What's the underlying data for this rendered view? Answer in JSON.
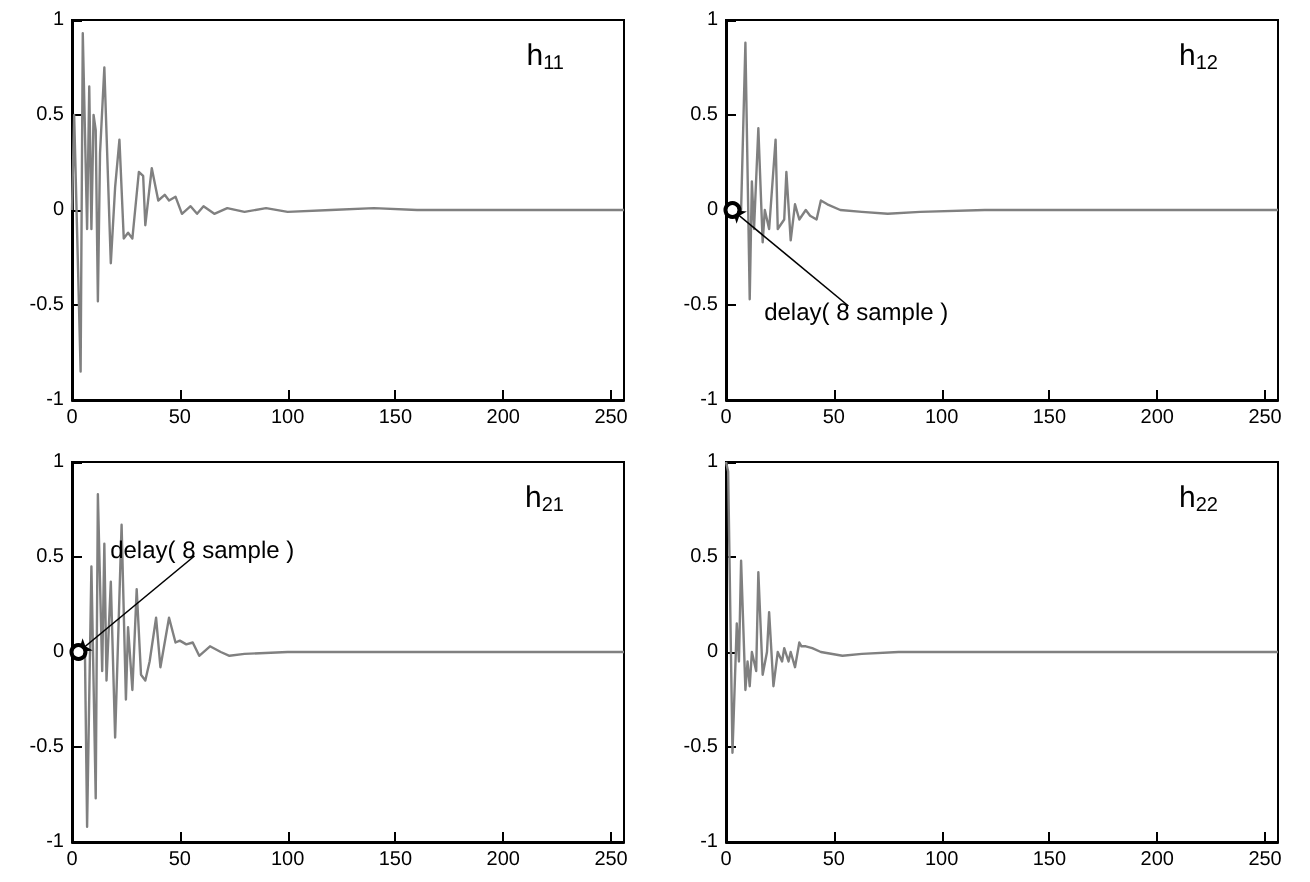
{
  "chart_data": [
    {
      "type": "line",
      "title": "h$_{11}$",
      "xlim": [
        0,
        256
      ],
      "ylim": [
        -1,
        1
      ],
      "xticks": [
        0,
        50,
        100,
        150,
        200,
        250
      ],
      "yticks": [
        -1,
        -0.5,
        0,
        0.5,
        1
      ],
      "grid": false,
      "series": [
        {
          "color": "#808080",
          "x": [
            0,
            1,
            4,
            5,
            7,
            8,
            9,
            10,
            11,
            12,
            13,
            15,
            18,
            20,
            22,
            24,
            26,
            28,
            31,
            33,
            34,
            37,
            40,
            43,
            45,
            48,
            51,
            55,
            58,
            61,
            66,
            72,
            80,
            90,
            100,
            120,
            140,
            160,
            200,
            256
          ],
          "values": [
            0,
            0.5,
            -0.85,
            0.93,
            -0.1,
            0.65,
            -0.1,
            0.5,
            0.42,
            -0.48,
            0.3,
            0.75,
            -0.28,
            0.12,
            0.37,
            -0.15,
            -0.12,
            -0.15,
            0.2,
            0.18,
            -0.08,
            0.22,
            0.05,
            0.08,
            0.05,
            0.07,
            -0.02,
            0.02,
            -0.02,
            0.02,
            -0.02,
            0.01,
            -0.01,
            0.01,
            -0.01,
            0,
            0.01,
            0,
            0,
            0
          ]
        }
      ]
    },
    {
      "type": "line",
      "title": "h$_{12}$",
      "xlim": [
        0,
        256
      ],
      "ylim": [
        -1,
        1
      ],
      "xticks": [
        0,
        50,
        100,
        150,
        200,
        250
      ],
      "yticks": [
        -1,
        -0.5,
        0,
        0.5,
        1
      ],
      "grid": false,
      "annotations": [
        {
          "text": "delay( 8 sample )",
          "x": 3,
          "y": 0
        }
      ],
      "series": [
        {
          "color": "#808080",
          "x": [
            0,
            7,
            9,
            11,
            12,
            13,
            15,
            17,
            18,
            20,
            23,
            24,
            27,
            28,
            30,
            32,
            34,
            37,
            39,
            42,
            44,
            47,
            53,
            63,
            75,
            90,
            120,
            160,
            200,
            256
          ],
          "values": [
            0,
            0,
            0.88,
            -0.47,
            0.15,
            -0.1,
            0.43,
            -0.17,
            0,
            -0.1,
            0.37,
            -0.1,
            -0.05,
            0.2,
            -0.16,
            0.03,
            -0.05,
            0,
            -0.03,
            -0.05,
            0.05,
            0.03,
            0,
            -0.01,
            -0.02,
            -0.01,
            0,
            0,
            0,
            0
          ]
        }
      ]
    },
    {
      "type": "line",
      "title": "h$_{21}$",
      "xlim": [
        0,
        256
      ],
      "ylim": [
        -1,
        1
      ],
      "xticks": [
        0,
        50,
        100,
        150,
        200,
        250
      ],
      "yticks": [
        -1,
        -0.5,
        0,
        0.5,
        1
      ],
      "grid": false,
      "annotations": [
        {
          "text": "delay( 8 sample )",
          "x": 3,
          "y": 0
        }
      ],
      "series": [
        {
          "color": "#808080",
          "x": [
            0,
            6,
            7,
            9,
            11,
            12,
            14,
            15,
            16,
            18,
            20,
            23,
            25,
            26,
            28,
            30,
            32,
            34,
            36,
            39,
            41,
            45,
            48,
            50,
            53,
            56,
            59,
            64,
            69,
            73,
            80,
            100,
            130,
            160,
            200,
            256
          ],
          "values": [
            0,
            0,
            -0.92,
            0.45,
            -0.77,
            0.83,
            -0.1,
            0.57,
            -0.15,
            0.37,
            -0.45,
            0.67,
            -0.25,
            0.13,
            -0.2,
            0.33,
            -0.12,
            -0.15,
            -0.05,
            0.18,
            -0.08,
            0.18,
            0.05,
            0.06,
            0.04,
            0.05,
            -0.02,
            0.03,
            0,
            -0.02,
            -0.01,
            0,
            0,
            0,
            0,
            0
          ]
        }
      ]
    },
    {
      "type": "line",
      "title": "h$_{22}$",
      "xlim": [
        0,
        256
      ],
      "ylim": [
        -1,
        1
      ],
      "xticks": [
        0,
        50,
        100,
        150,
        200,
        250
      ],
      "yticks": [
        -1,
        -0.5,
        0,
        0.5,
        1
      ],
      "grid": false,
      "series": [
        {
          "color": "#808080",
          "x": [
            0,
            1,
            3,
            5,
            6,
            7,
            9,
            10,
            11,
            12,
            14,
            15,
            17,
            19,
            20,
            22,
            24,
            26,
            27,
            29,
            30,
            32,
            34,
            35,
            37,
            40,
            44,
            54,
            63,
            80,
            120,
            160,
            200,
            256
          ],
          "values": [
            1,
            0.95,
            -0.53,
            0.15,
            -0.05,
            0.48,
            -0.2,
            -0.05,
            -0.18,
            0,
            -0.1,
            0.42,
            -0.12,
            0,
            0.21,
            -0.18,
            0,
            -0.05,
            0.02,
            -0.05,
            0,
            -0.08,
            0.05,
            0.03,
            0.03,
            0.02,
            0,
            -0.02,
            -0.01,
            0,
            0,
            0,
            0,
            0
          ]
        }
      ]
    }
  ]
}
